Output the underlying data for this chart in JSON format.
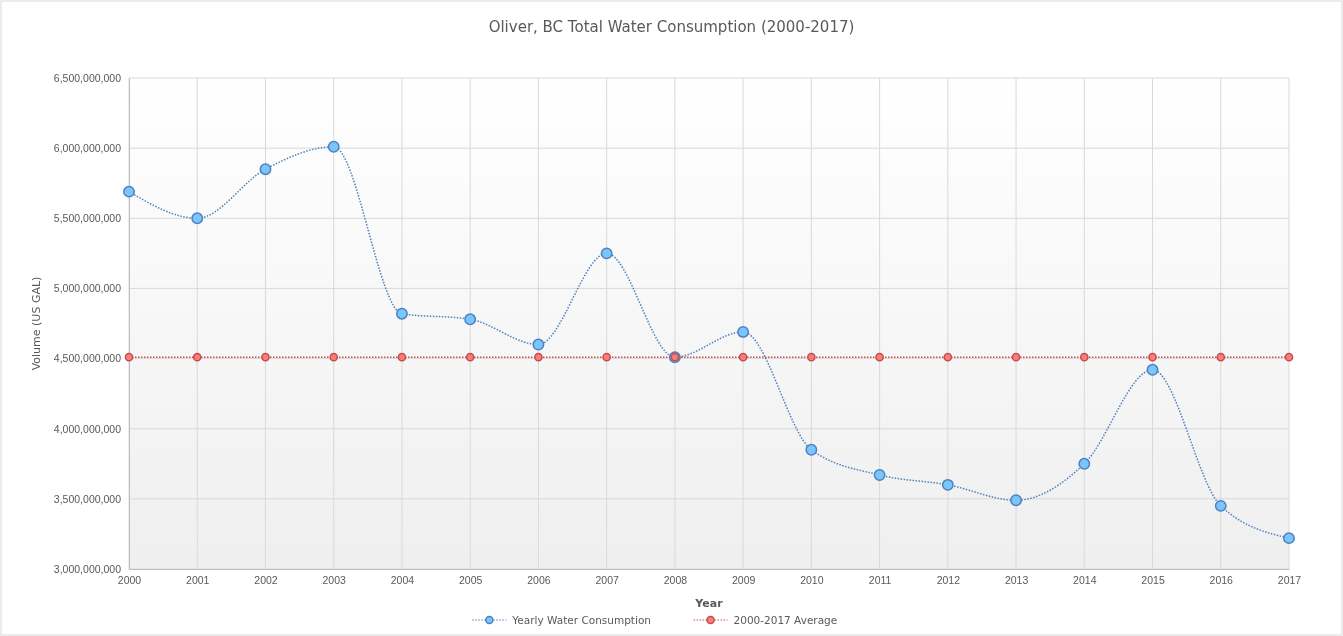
{
  "chart_data": {
    "type": "line",
    "title": "Oliver, BC Total Water Consumption (2000-2017)",
    "xlabel": "Year",
    "ylabel": "Volume (US GAL)",
    "categories": [
      "2000",
      "2001",
      "2002",
      "2003",
      "2004",
      "2005",
      "2006",
      "2007",
      "2008",
      "2009",
      "2010",
      "2011",
      "2012",
      "2013",
      "2014",
      "2015",
      "2016",
      "2017"
    ],
    "series": [
      {
        "name": "Yearly Water Consumption",
        "color": "#4f81bd",
        "values": [
          5690000000,
          5500000000,
          5850000000,
          6010000000,
          4820000000,
          4780000000,
          4600000000,
          5250000000,
          4510000000,
          4690000000,
          3850000000,
          3670000000,
          3600000000,
          3490000000,
          3750000000,
          4420000000,
          3450000000,
          3220000000
        ]
      },
      {
        "name": "2000-2017 Average",
        "color": "#c0504d",
        "values": [
          4510000000,
          4510000000,
          4510000000,
          4510000000,
          4510000000,
          4510000000,
          4510000000,
          4510000000,
          4510000000,
          4510000000,
          4510000000,
          4510000000,
          4510000000,
          4510000000,
          4510000000,
          4510000000,
          4510000000,
          4510000000
        ]
      }
    ],
    "ylim": [
      3000000000,
      6500000000
    ],
    "yticks": [
      {
        "value": 3000000000,
        "label": "3,000,000,000"
      },
      {
        "value": 3500000000,
        "label": "3,500,000,000"
      },
      {
        "value": 4000000000,
        "label": "4,000,000,000"
      },
      {
        "value": 4500000000,
        "label": "4,500,000,000"
      },
      {
        "value": 5000000000,
        "label": "5,000,000,000"
      },
      {
        "value": 5500000000,
        "label": "5,500,000,000"
      },
      {
        "value": 6000000000,
        "label": "6,000,000,000"
      },
      {
        "value": 6500000000,
        "label": "6,500,000,000"
      }
    ],
    "grid": true,
    "legend": "bottom",
    "marker": "circle",
    "line_style": "dotted"
  }
}
